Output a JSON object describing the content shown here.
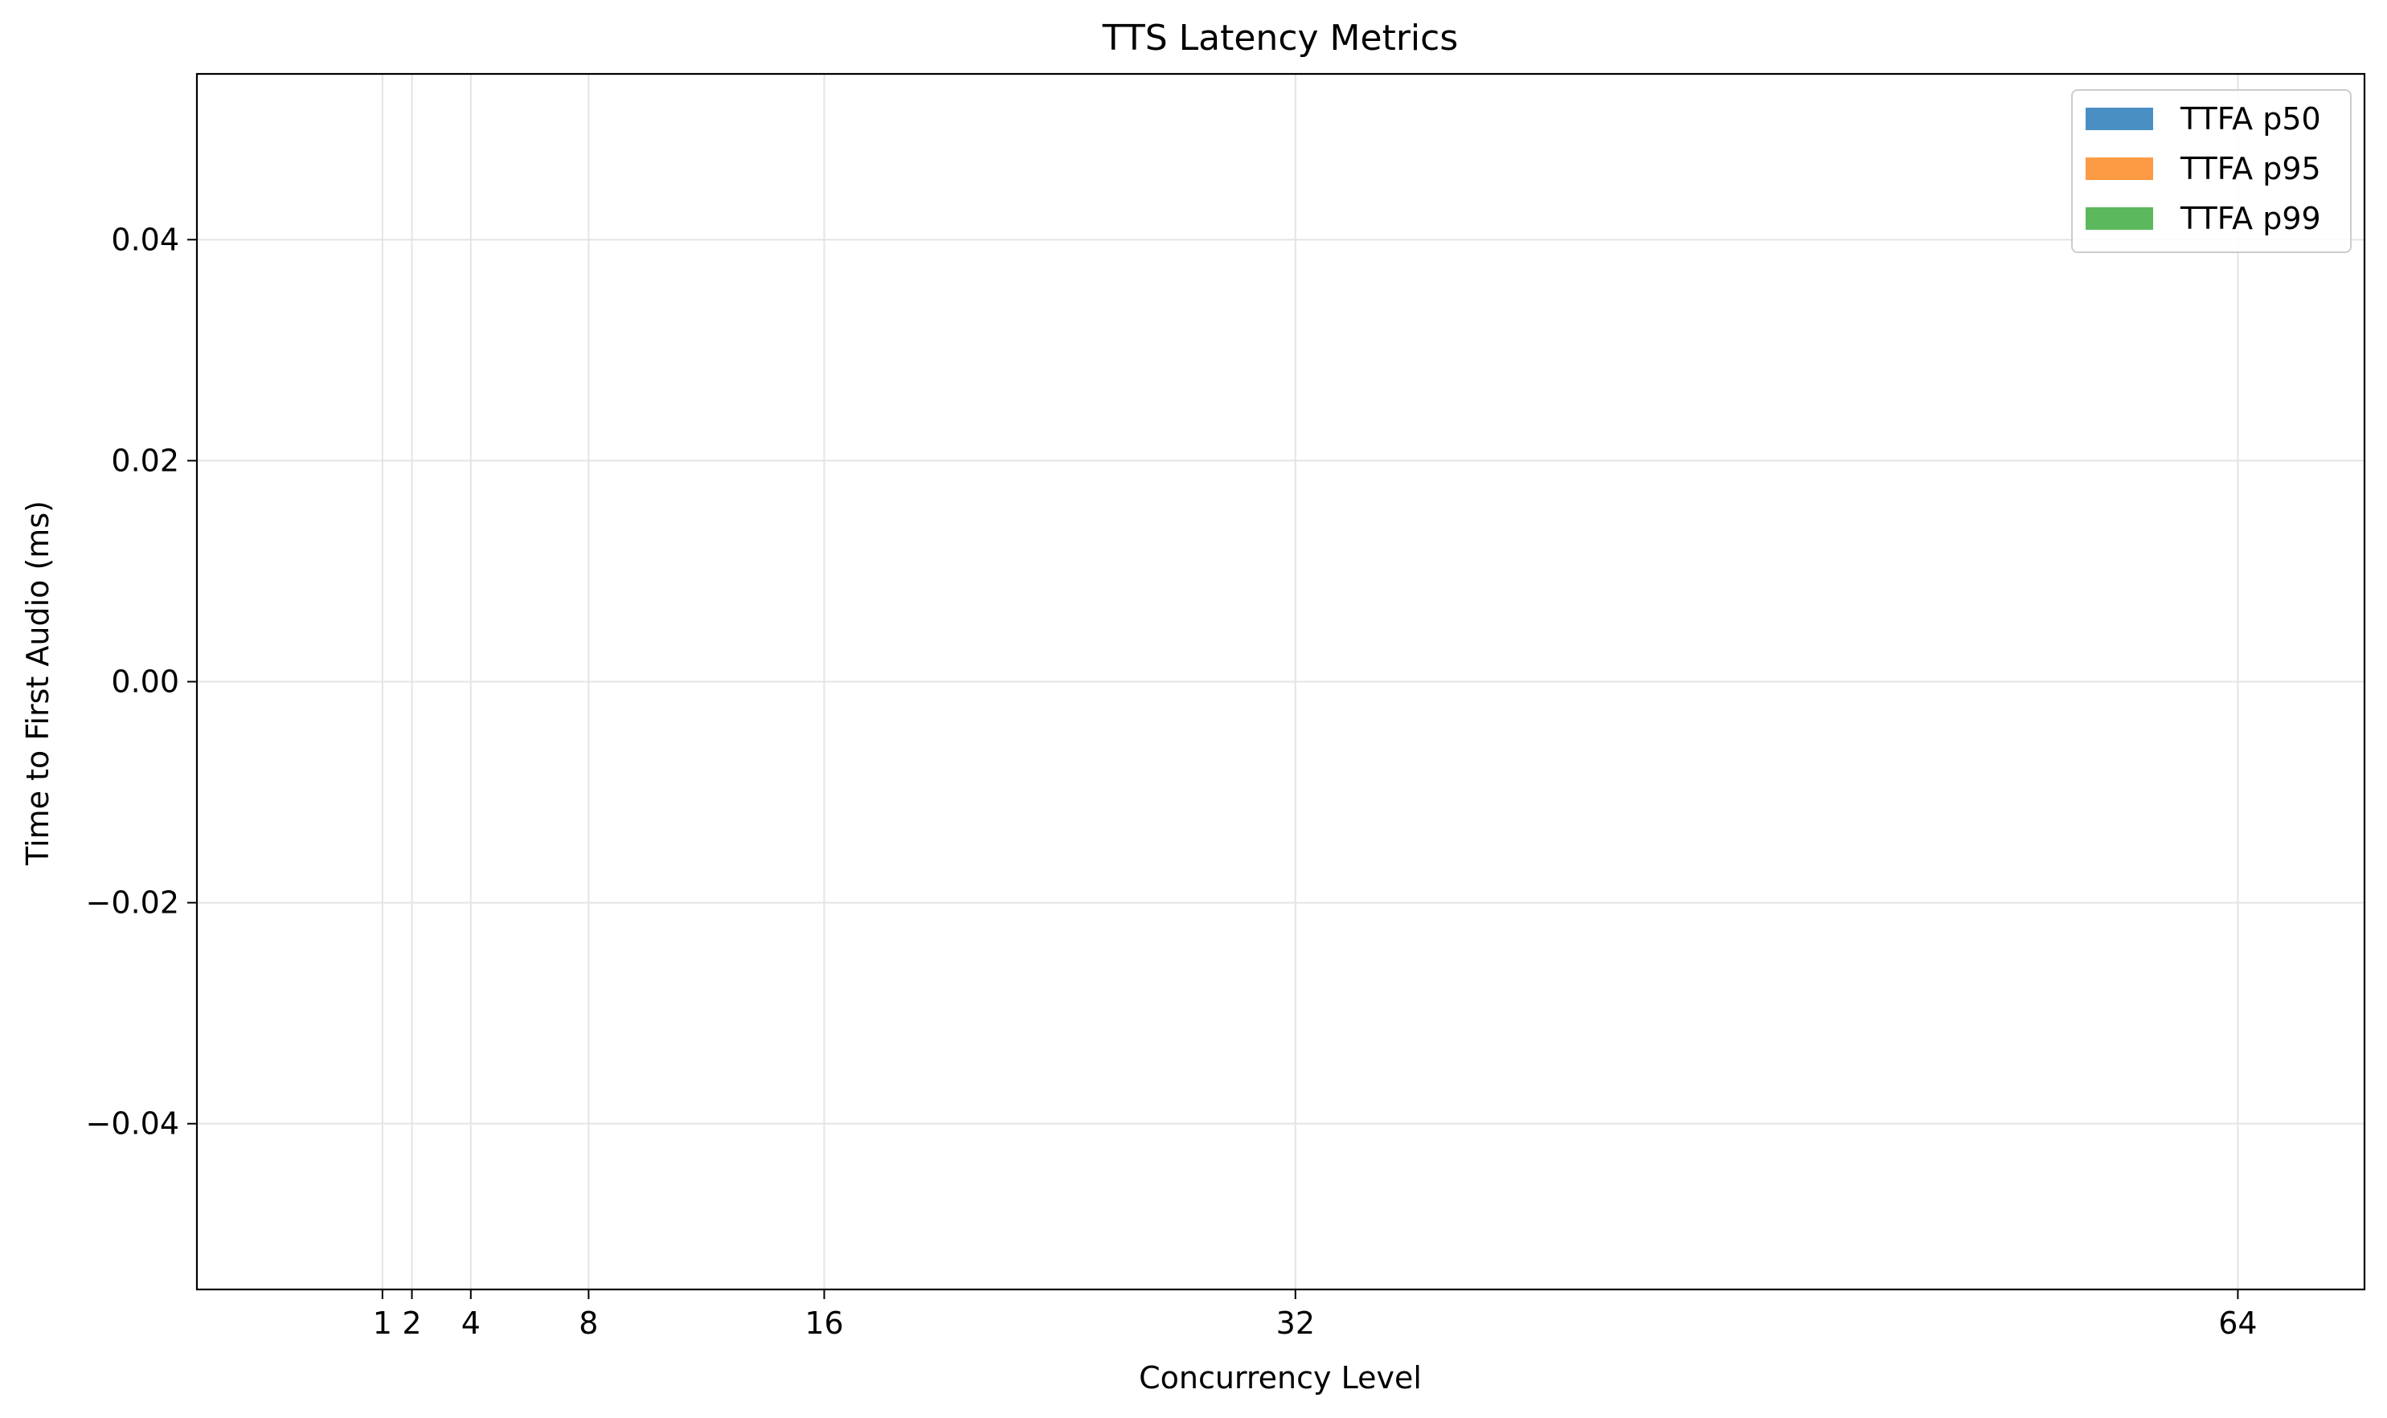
{
  "chart_data": {
    "type": "bar",
    "title": "TTS Latency Metrics",
    "xlabel": "Concurrency Level",
    "ylabel": "Time to First Audio (ms)",
    "x_ticks": [
      1,
      2,
      4,
      8,
      16,
      32,
      64
    ],
    "x_tick_labels": [
      "1",
      "2",
      "4",
      "8",
      "16",
      "32",
      "64"
    ],
    "xlim": [
      -5.3,
      68.3
    ],
    "ylim": [
      -0.055,
      0.055
    ],
    "y_ticks": [
      -0.04,
      -0.02,
      0.0,
      0.02,
      0.04
    ],
    "y_tick_labels": [
      "−0.04",
      "−0.02",
      "0.00",
      "0.02",
      "0.04"
    ],
    "grid": true,
    "legend_position": "top-right",
    "series": [
      {
        "name": "TTFA p50",
        "color": "#4a8fc4",
        "values": []
      },
      {
        "name": "TTFA p95",
        "color": "#fd9a44",
        "values": []
      },
      {
        "name": "TTFA p99",
        "color": "#5cb85c",
        "values": []
      }
    ]
  }
}
